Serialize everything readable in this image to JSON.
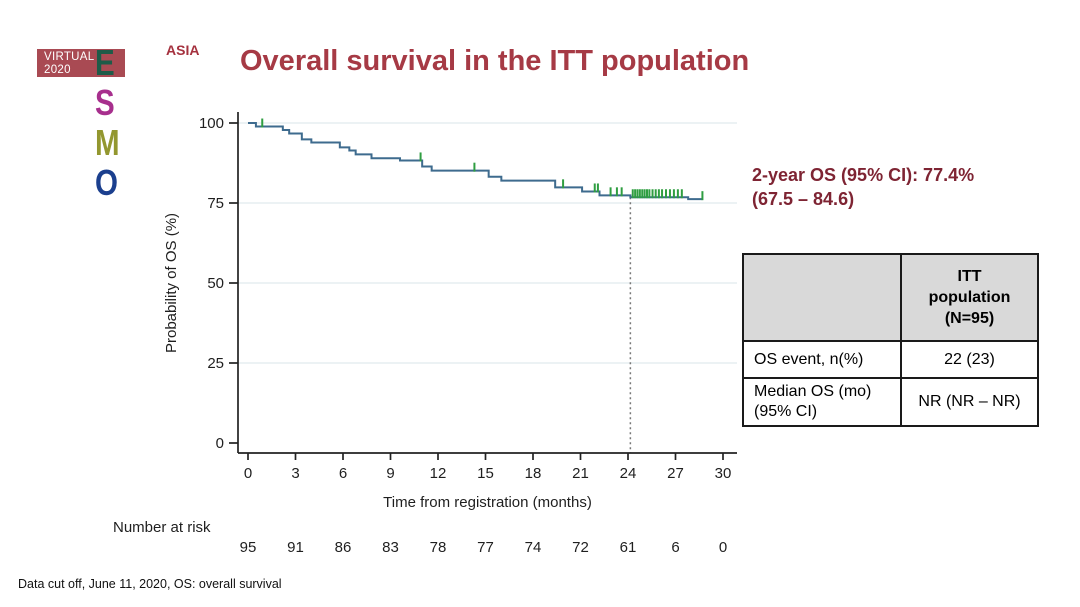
{
  "logo": {
    "virtual_line1": "VIRTUAL",
    "virtual_line2": "2020",
    "esmo": [
      {
        "ch": "E",
        "color": "#1e5b48"
      },
      {
        "ch": "S",
        "color": "#a72f8d"
      },
      {
        "ch": "M",
        "color": "#93972f"
      },
      {
        "ch": "O",
        "color": "#1b3f8e"
      }
    ],
    "asia": "ASIA"
  },
  "title": "Overall survival in the ITT population",
  "annotation": {
    "text": "2-year OS (95% CI): 77.4%\n(67.5 – 84.6)"
  },
  "table": {
    "header_blank": "",
    "header_value": "ITT\npopulation\n(N=95)",
    "rows": [
      {
        "label": "OS event, n(%)",
        "value": "22 (23)"
      },
      {
        "label": "Median OS (mo)\n(95% CI)",
        "value": "NR (NR – NR)"
      }
    ]
  },
  "footer": "Data cut off, June 11, 2020, OS: overall survival",
  "chart_data": {
    "type": "line",
    "subtype": "kaplan-meier-step",
    "title": "",
    "xlabel": "Time from registration (months)",
    "ylabel": "Probability of OS (%)",
    "xlim": [
      0,
      30
    ],
    "ylim": [
      0,
      100
    ],
    "xticks": [
      0,
      3,
      6,
      9,
      12,
      15,
      18,
      21,
      24,
      27,
      30
    ],
    "yticks": [
      0,
      25,
      50,
      75,
      100
    ],
    "grid": true,
    "legend": "none",
    "style": {
      "grid_color": "#e6edf0",
      "axis_color": "#222222",
      "ref_line_color": "#777777"
    },
    "series": [
      {
        "name": "Overall survival (ITT)",
        "color": "#3e6b8e",
        "steps": [
          [
            0,
            100
          ],
          [
            0.5,
            98.9
          ],
          [
            2.2,
            97.8
          ],
          [
            2.6,
            96.7
          ],
          [
            3.4,
            94.9
          ],
          [
            4.0,
            93.9
          ],
          [
            5.8,
            92.4
          ],
          [
            6.4,
            91.4
          ],
          [
            6.8,
            90.2
          ],
          [
            7.8,
            89.0
          ],
          [
            9.6,
            88.3
          ],
          [
            11.0,
            86.4
          ],
          [
            11.6,
            85.1
          ],
          [
            15.2,
            83.2
          ],
          [
            16.0,
            82.0
          ],
          [
            19.4,
            79.9
          ],
          [
            21.1,
            78.6
          ],
          [
            22.2,
            77.4
          ],
          [
            24.15,
            76.8
          ],
          [
            27.8,
            76.2
          ]
        ],
        "end_month": 28.7
      }
    ],
    "censor_marks": {
      "color": "#2f9e41",
      "months": [
        0.9,
        10.9,
        14.3,
        19.9,
        21.9,
        22.1,
        22.9,
        23.3,
        23.6,
        24.3,
        24.45,
        24.6,
        24.75,
        24.9,
        25.05,
        25.2,
        25.35,
        25.55,
        25.75,
        25.95,
        26.15,
        26.4,
        26.65,
        26.9,
        27.15,
        27.4,
        28.7
      ]
    },
    "reference_line": {
      "x": 24.15,
      "y_top": 76.8,
      "style": "dotted"
    },
    "key_stats": {
      "two_year_os_pct": 77.4,
      "two_year_os_ci": [
        67.5,
        84.6
      ],
      "os_events": 22,
      "os_events_pct": 23,
      "median_os": "NR"
    },
    "number_at_risk": {
      "label": "Number at risk",
      "values": [
        95,
        91,
        86,
        83,
        78,
        77,
        74,
        72,
        61,
        6,
        0
      ]
    }
  }
}
